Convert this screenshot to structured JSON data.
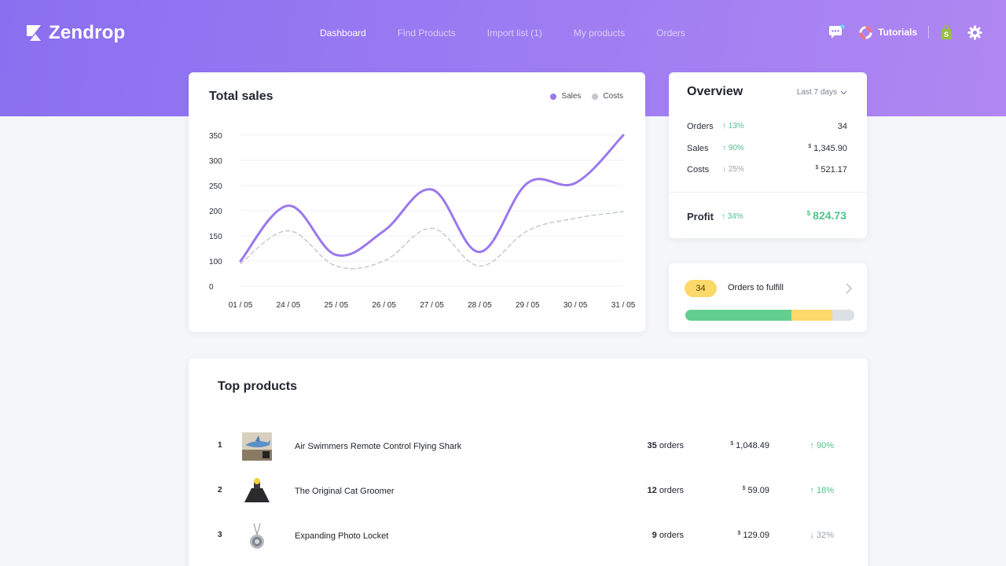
{
  "brand": {
    "name": "Zendrop"
  },
  "nav": [
    {
      "label": "Dashboard",
      "active": true
    },
    {
      "label": "Find Products",
      "active": false
    },
    {
      "label": "Import list (1)",
      "active": false
    },
    {
      "label": "My products",
      "active": false
    },
    {
      "label": "Orders",
      "active": false
    }
  ],
  "header_right": {
    "chat_icon": "chat-bubble-icon",
    "tutorials_label": "Tutorials",
    "store_icon": "shopify-bag-icon",
    "settings_icon": "gear-icon"
  },
  "sales_card": {
    "title": "Total sales",
    "legend": [
      {
        "label": "Sales",
        "color": "#9a78ee"
      },
      {
        "label": "Costs",
        "color": "#c3c6cc"
      }
    ]
  },
  "chart_data": {
    "type": "line",
    "title": "Total sales",
    "categories": [
      "01 / 05",
      "24 / 05",
      "25 / 05",
      "26 / 05",
      "27 / 05",
      "28 / 05",
      "29 / 05",
      "30 / 05",
      "31 / 05"
    ],
    "y_ticks": [
      "350",
      "300",
      "250",
      "200",
      "150",
      "100",
      "0"
    ],
    "series": [
      {
        "name": "Sales",
        "color": "#9a78ee",
        "style": "solid",
        "points": [
          [
            0,
            100
          ],
          [
            1,
            210
          ],
          [
            2,
            112
          ],
          [
            3,
            160
          ],
          [
            4,
            242
          ],
          [
            5,
            118
          ],
          [
            6,
            255
          ],
          [
            7,
            255
          ],
          [
            8,
            350
          ]
        ]
      },
      {
        "name": "Costs",
        "color": "#c3c6cc",
        "style": "dashed",
        "points": [
          [
            0,
            90
          ],
          [
            1,
            160
          ],
          [
            2,
            80
          ],
          [
            3,
            100
          ],
          [
            4,
            165
          ],
          [
            5,
            80
          ],
          [
            6,
            160
          ],
          [
            7,
            185
          ],
          [
            8,
            198
          ]
        ]
      }
    ],
    "grid": true,
    "legend_position": "top-right"
  },
  "overview": {
    "title": "Overview",
    "range_label": "Last 7 days",
    "rows": [
      {
        "label": "Orders",
        "change": "↑ 13%",
        "trend": "up",
        "currency": "",
        "value": "34"
      },
      {
        "label": "Sales",
        "change": "↑ 90%",
        "trend": "up",
        "currency": "$",
        "value": "1,345.90"
      },
      {
        "label": "Costs",
        "change": "↓ 25%",
        "trend": "down",
        "currency": "$",
        "value": "521.17"
      }
    ],
    "profit": {
      "label": "Profit",
      "change": "↑ 34%",
      "currency": "$",
      "value": "824.73"
    }
  },
  "fulfill": {
    "count": "34",
    "label": "Orders to fulfill",
    "progress": [
      {
        "fraction": 0.63,
        "color": "#62cf8f"
      },
      {
        "fraction": 0.24,
        "color": "#fdd86a"
      },
      {
        "fraction": 0.13,
        "color": "#dcdfe4"
      }
    ]
  },
  "top_products": {
    "title": "Top products",
    "items": [
      {
        "rank": "1",
        "name": "Air Swimmers Remote Control Flying Shark",
        "orders_count": "35",
        "orders_word": "orders",
        "currency": "$",
        "amount": "1,048.49",
        "change": "↑ 90%",
        "trend": "up",
        "image_icon": "flying-shark-thumbnail"
      },
      {
        "rank": "2",
        "name": "The Original Cat Groomer",
        "orders_count": "12",
        "orders_word": "orders",
        "currency": "$",
        "amount": "59.09",
        "change": "↑ 18%",
        "trend": "up",
        "image_icon": "cat-groomer-thumbnail"
      },
      {
        "rank": "3",
        "name": "Expanding Photo Locket",
        "orders_count": "9",
        "orders_word": "orders",
        "currency": "$",
        "amount": "129.09",
        "change": "↓ 32%",
        "trend": "down",
        "image_icon": "photo-locket-thumbnail"
      }
    ]
  }
}
